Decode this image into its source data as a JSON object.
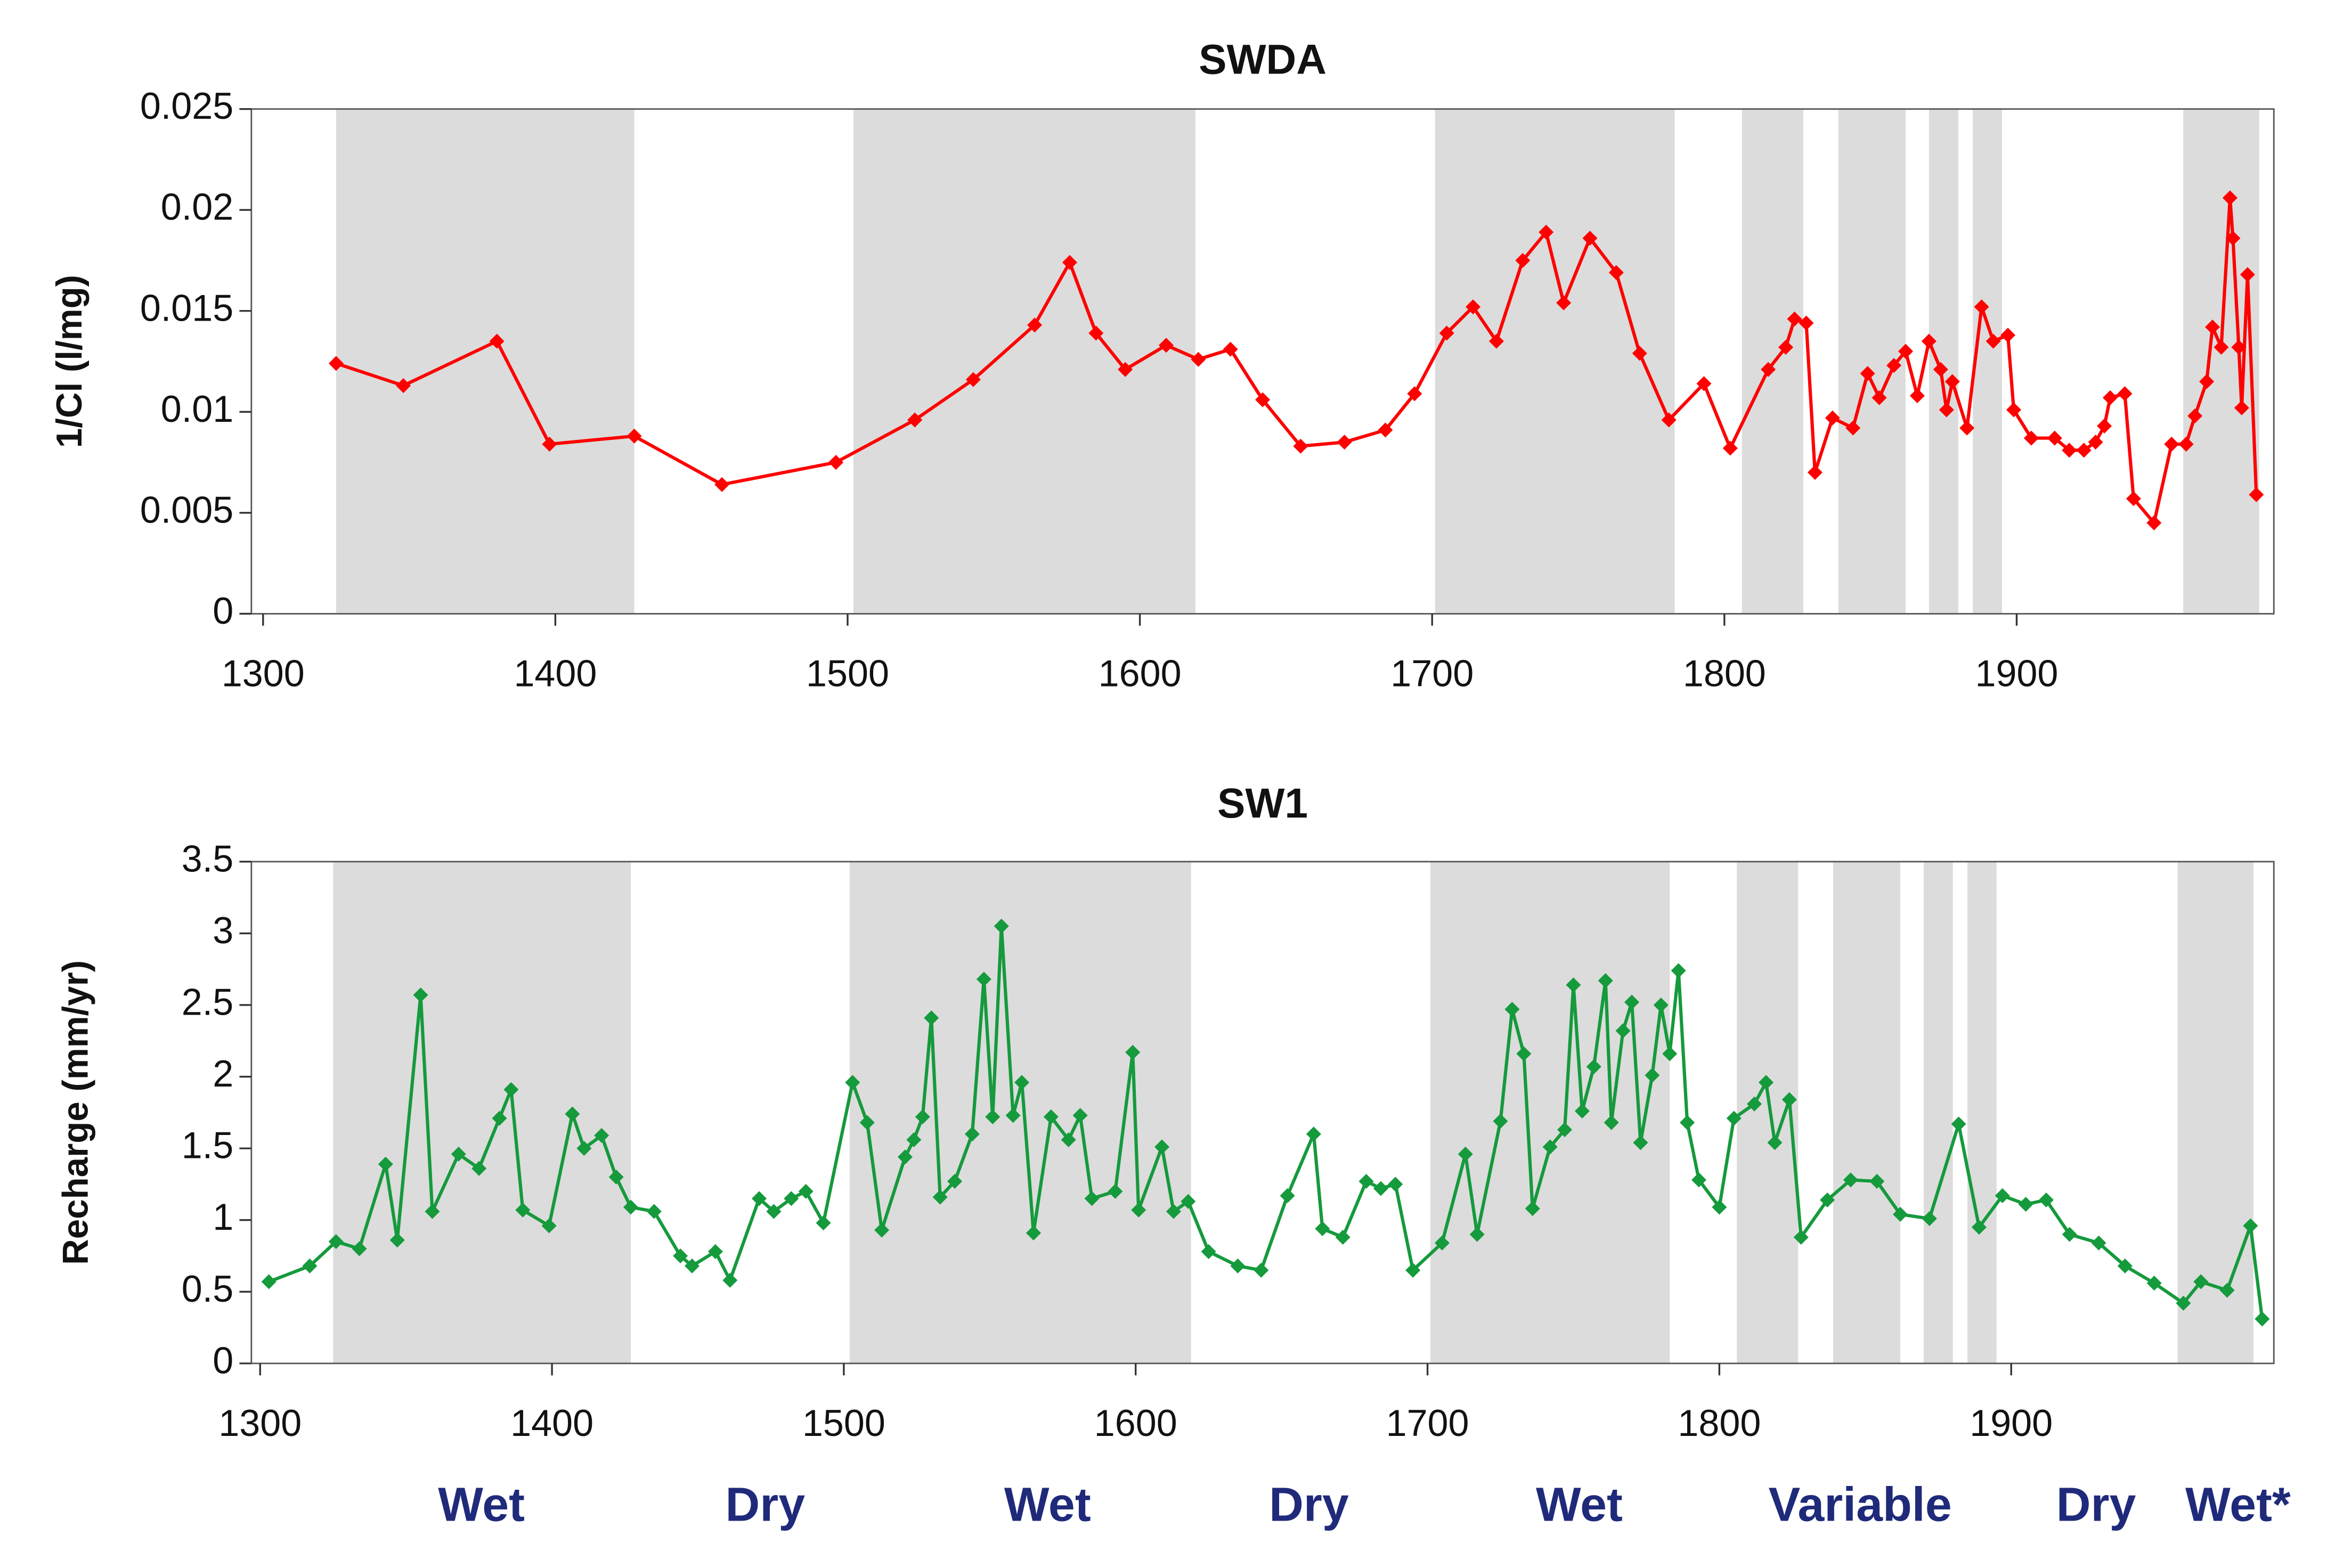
{
  "chart_data": [
    {
      "type": "line",
      "title": "SWDA",
      "ylabel": "1/Cl (l/mg)",
      "color": "#ff0000",
      "marker": "diamond",
      "xlim": [
        1296,
        1988
      ],
      "xticks": [
        1300,
        1400,
        1500,
        1600,
        1700,
        1800,
        1900
      ],
      "ylim": [
        0,
        0.025
      ],
      "yticks": [
        0,
        0.005,
        0.01,
        0.015,
        0.02,
        0.025
      ],
      "shaded_periods": [
        [
          1325,
          1427
        ],
        [
          1502,
          1619
        ],
        [
          1701,
          1783
        ],
        [
          1806,
          1827
        ],
        [
          1839,
          1862
        ],
        [
          1870,
          1880
        ],
        [
          1885,
          1895
        ],
        [
          1957,
          1983
        ]
      ],
      "x": [
        1325,
        1348,
        1380,
        1398,
        1427,
        1457,
        1496,
        1523,
        1543,
        1564,
        1576,
        1585,
        1595,
        1609,
        1620,
        1631,
        1642,
        1655,
        1670,
        1684,
        1694,
        1705,
        1714,
        1722,
        1731,
        1739,
        1745,
        1754,
        1763,
        1771,
        1781,
        1793,
        1802,
        1815,
        1821,
        1824,
        1828,
        1831,
        1837,
        1844,
        1849,
        1853,
        1858,
        1862,
        1866,
        1870,
        1874,
        1876,
        1878,
        1883,
        1888,
        1892,
        1897,
        1899,
        1905,
        1913,
        1918,
        1923,
        1927,
        1930,
        1932,
        1937,
        1940,
        1947,
        1953,
        1958,
        1961,
        1965,
        1967,
        1970,
        1973,
        1974,
        1976,
        1977,
        1979,
        1982
      ],
      "values": [
        0.0124,
        0.0113,
        0.0135,
        0.0084,
        0.0088,
        0.0064,
        0.0075,
        0.0096,
        0.0116,
        0.0143,
        0.0174,
        0.0139,
        0.0121,
        0.0133,
        0.0126,
        0.0131,
        0.0106,
        0.0083,
        0.0085,
        0.0091,
        0.0109,
        0.0139,
        0.0152,
        0.0135,
        0.0175,
        0.0189,
        0.0154,
        0.0186,
        0.0169,
        0.0129,
        0.0096,
        0.0114,
        0.0082,
        0.0121,
        0.0132,
        0.0146,
        0.0144,
        0.007,
        0.0097,
        0.0092,
        0.0119,
        0.0107,
        0.0123,
        0.013,
        0.0108,
        0.0135,
        0.0121,
        0.0101,
        0.0115,
        0.0092,
        0.0152,
        0.0135,
        0.0138,
        0.0101,
        0.0087,
        0.0087,
        0.0081,
        0.0081,
        0.0085,
        0.0093,
        0.0107,
        0.0109,
        0.0057,
        0.0045,
        0.0084,
        0.0084,
        0.0098,
        0.0115,
        0.0142,
        0.0132,
        0.0206,
        0.0186,
        0.0132,
        0.0102,
        0.0168,
        0.0059
      ]
    },
    {
      "type": "line",
      "title": "SW1",
      "ylabel": "Recharge (mm/yr)",
      "color": "#159a3c",
      "marker": "diamond",
      "xlim": [
        1297,
        1990
      ],
      "xticks": [
        1300,
        1400,
        1500,
        1600,
        1700,
        1800,
        1900
      ],
      "ylim": [
        0,
        3.5
      ],
      "yticks": [
        0,
        0.5,
        1,
        1.5,
        2,
        2.5,
        3,
        3.5
      ],
      "shaded_periods": [
        [
          1325,
          1427
        ],
        [
          1502,
          1619
        ],
        [
          1701,
          1783
        ],
        [
          1806,
          1827
        ],
        [
          1839,
          1862
        ],
        [
          1870,
          1880
        ],
        [
          1885,
          1895
        ],
        [
          1957,
          1983
        ]
      ],
      "x": [
        1303,
        1317,
        1326,
        1334,
        1343,
        1347,
        1355,
        1359,
        1368,
        1375,
        1382,
        1386,
        1390,
        1399,
        1407,
        1411,
        1417,
        1422,
        1427,
        1435,
        1444,
        1448,
        1456,
        1461,
        1471,
        1476,
        1482,
        1487,
        1493,
        1503,
        1508,
        1513,
        1521,
        1524,
        1527,
        1530,
        1533,
        1538,
        1544,
        1548,
        1551,
        1554,
        1558,
        1561,
        1565,
        1571,
        1577,
        1581,
        1585,
        1593,
        1599,
        1601,
        1609,
        1613,
        1618,
        1625,
        1635,
        1643,
        1652,
        1661,
        1664,
        1671,
        1679,
        1684,
        1689,
        1695,
        1705,
        1713,
        1717,
        1725,
        1729,
        1733,
        1736,
        1742,
        1747,
        1750,
        1753,
        1757,
        1761,
        1763,
        1767,
        1770,
        1773,
        1777,
        1780,
        1783,
        1786,
        1789,
        1793,
        1800,
        1805,
        1812,
        1816,
        1819,
        1824,
        1828,
        1837,
        1845,
        1854,
        1862,
        1872,
        1882,
        1889,
        1897,
        1905,
        1912,
        1920,
        1930,
        1939,
        1949,
        1959,
        1965,
        1974,
        1982,
        1986
      ],
      "values": [
        0.57,
        0.68,
        0.85,
        0.8,
        1.39,
        0.86,
        2.57,
        1.06,
        1.46,
        1.36,
        1.71,
        1.91,
        1.07,
        0.96,
        1.74,
        1.5,
        1.59,
        1.3,
        1.09,
        1.06,
        0.75,
        0.68,
        0.78,
        0.58,
        1.15,
        1.06,
        1.15,
        1.2,
        0.98,
        1.96,
        1.68,
        0.93,
        1.44,
        1.56,
        1.72,
        2.41,
        1.16,
        1.27,
        1.6,
        2.68,
        1.72,
        3.05,
        1.73,
        1.96,
        0.91,
        1.72,
        1.56,
        1.73,
        1.15,
        1.2,
        2.17,
        1.07,
        1.51,
        1.06,
        1.13,
        0.78,
        0.68,
        0.65,
        1.17,
        1.6,
        0.94,
        0.88,
        1.27,
        1.22,
        1.25,
        0.65,
        0.84,
        1.46,
        0.9,
        1.69,
        2.47,
        2.16,
        1.08,
        1.51,
        1.63,
        2.64,
        1.76,
        2.07,
        2.67,
        1.68,
        2.32,
        2.52,
        1.54,
        2.01,
        2.5,
        2.16,
        2.74,
        1.68,
        1.28,
        1.09,
        1.71,
        1.81,
        1.96,
        1.54,
        1.84,
        0.88,
        1.14,
        1.28,
        1.27,
        1.04,
        1.01,
        1.67,
        0.95,
        1.17,
        1.11,
        1.14,
        0.9,
        0.84,
        0.68,
        0.56,
        0.42,
        0.57,
        0.51,
        0.96,
        0.31
      ],
      "annotations": [
        "Wet",
        "Dry",
        "Wet",
        "Dry",
        "Wet",
        "Variable",
        "Dry",
        "Wet*"
      ]
    }
  ]
}
